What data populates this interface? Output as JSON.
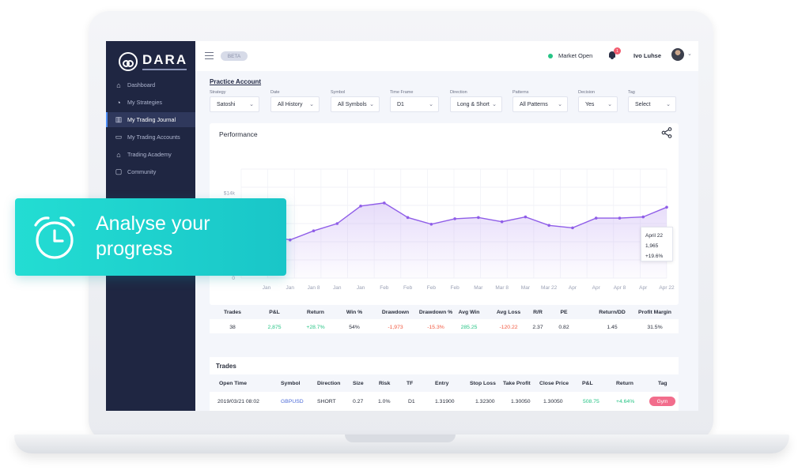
{
  "app": {
    "logo_text": "DARA"
  },
  "sidebar": {
    "items": [
      {
        "label": "Dashboard",
        "icon": "home-icon",
        "active": false
      },
      {
        "label": "My Strategies",
        "icon": "strategy-icon",
        "active": false
      },
      {
        "label": "My Trading Journal",
        "icon": "journal-chart-icon",
        "active": true
      },
      {
        "label": "My Trading Accounts",
        "icon": "wallet-icon",
        "active": false
      },
      {
        "label": "Trading Academy",
        "icon": "academy-icon",
        "active": false
      },
      {
        "label": "Community",
        "icon": "chat-icon",
        "active": false
      }
    ]
  },
  "topbar": {
    "beta": "BETA",
    "market_status": "Market Open",
    "market_color": "#26c485",
    "notification_count": "1",
    "user_name": "Ivo Luhse"
  },
  "account": {
    "title": "Practice Account"
  },
  "filters": [
    {
      "label": "Strategy",
      "value": "Satoshi"
    },
    {
      "label": "Date",
      "value": "All History"
    },
    {
      "label": "Symbol",
      "value": "All Symbols"
    },
    {
      "label": "Time Frame",
      "value": "D1"
    },
    {
      "label": "Direction",
      "value": "Long & Short"
    },
    {
      "label": "Patterns",
      "value": "All Patterns"
    },
    {
      "label": "Decision",
      "value": "Yes"
    },
    {
      "label": "Tag",
      "value": "Select"
    }
  ],
  "performance": {
    "title": "Performance",
    "tooltip": {
      "date": "April 22",
      "value": "1,965",
      "change": "+19.6%"
    }
  },
  "chart_data": {
    "type": "area",
    "title": "Performance",
    "categories": [
      "Jan",
      "Jan",
      "Jan 8",
      "Jan",
      "Jan",
      "Feb",
      "Feb",
      "Feb",
      "Feb",
      "Mar",
      "Mar 8",
      "Mar",
      "Mar 22",
      "Apr",
      "Apr",
      "Apr 8",
      "Apr",
      "Apr 22"
    ],
    "y_ticks": [
      "0",
      "$14k"
    ],
    "values": [
      7000,
      6300,
      7800,
      9000,
      11900,
      12400,
      10000,
      8900,
      9800,
      10000,
      9300,
      10100,
      8700,
      8300,
      9900,
      9900,
      10100,
      11700
    ],
    "color": "#8f5de8",
    "ylim": [
      0,
      18000
    ],
    "grid": true
  },
  "stats": {
    "headers": [
      "Trades",
      "P&L",
      "Return",
      "Win %",
      "Drawdown",
      "Drawdown %",
      "Avg Win",
      "Avg Loss",
      "R/R",
      "PE",
      "Return/DD",
      "Profit Margin"
    ],
    "values": [
      "38",
      "2,875",
      "+28.7%",
      "54%",
      "-1,973",
      "-15.3%",
      "285.25",
      "-120.22",
      "2.37",
      "0.82",
      "1.45",
      "31.5%"
    ],
    "positive_color": "#26c485",
    "negative_color": "#f2583f"
  },
  "trades": {
    "title": "Trades",
    "headers": [
      "Open Time",
      "Symbol",
      "Direction",
      "Size",
      "Risk",
      "TF",
      "Entry",
      "Stop Loss",
      "Take Profit",
      "Close Price",
      "P&L",
      "Return",
      "Tag"
    ],
    "rows": [
      [
        "2019/03/21 08:02",
        "GBPUSD",
        "SHORT",
        "0.27",
        "1.0%",
        "D1",
        "1.31900",
        "1.32300",
        "1.30050",
        "1.30050",
        "508.75",
        "+4.64%",
        "Gym"
      ]
    ]
  },
  "promo": {
    "line1": "Analyse your",
    "line2": "progress",
    "icon": "alarm-clock-icon"
  }
}
